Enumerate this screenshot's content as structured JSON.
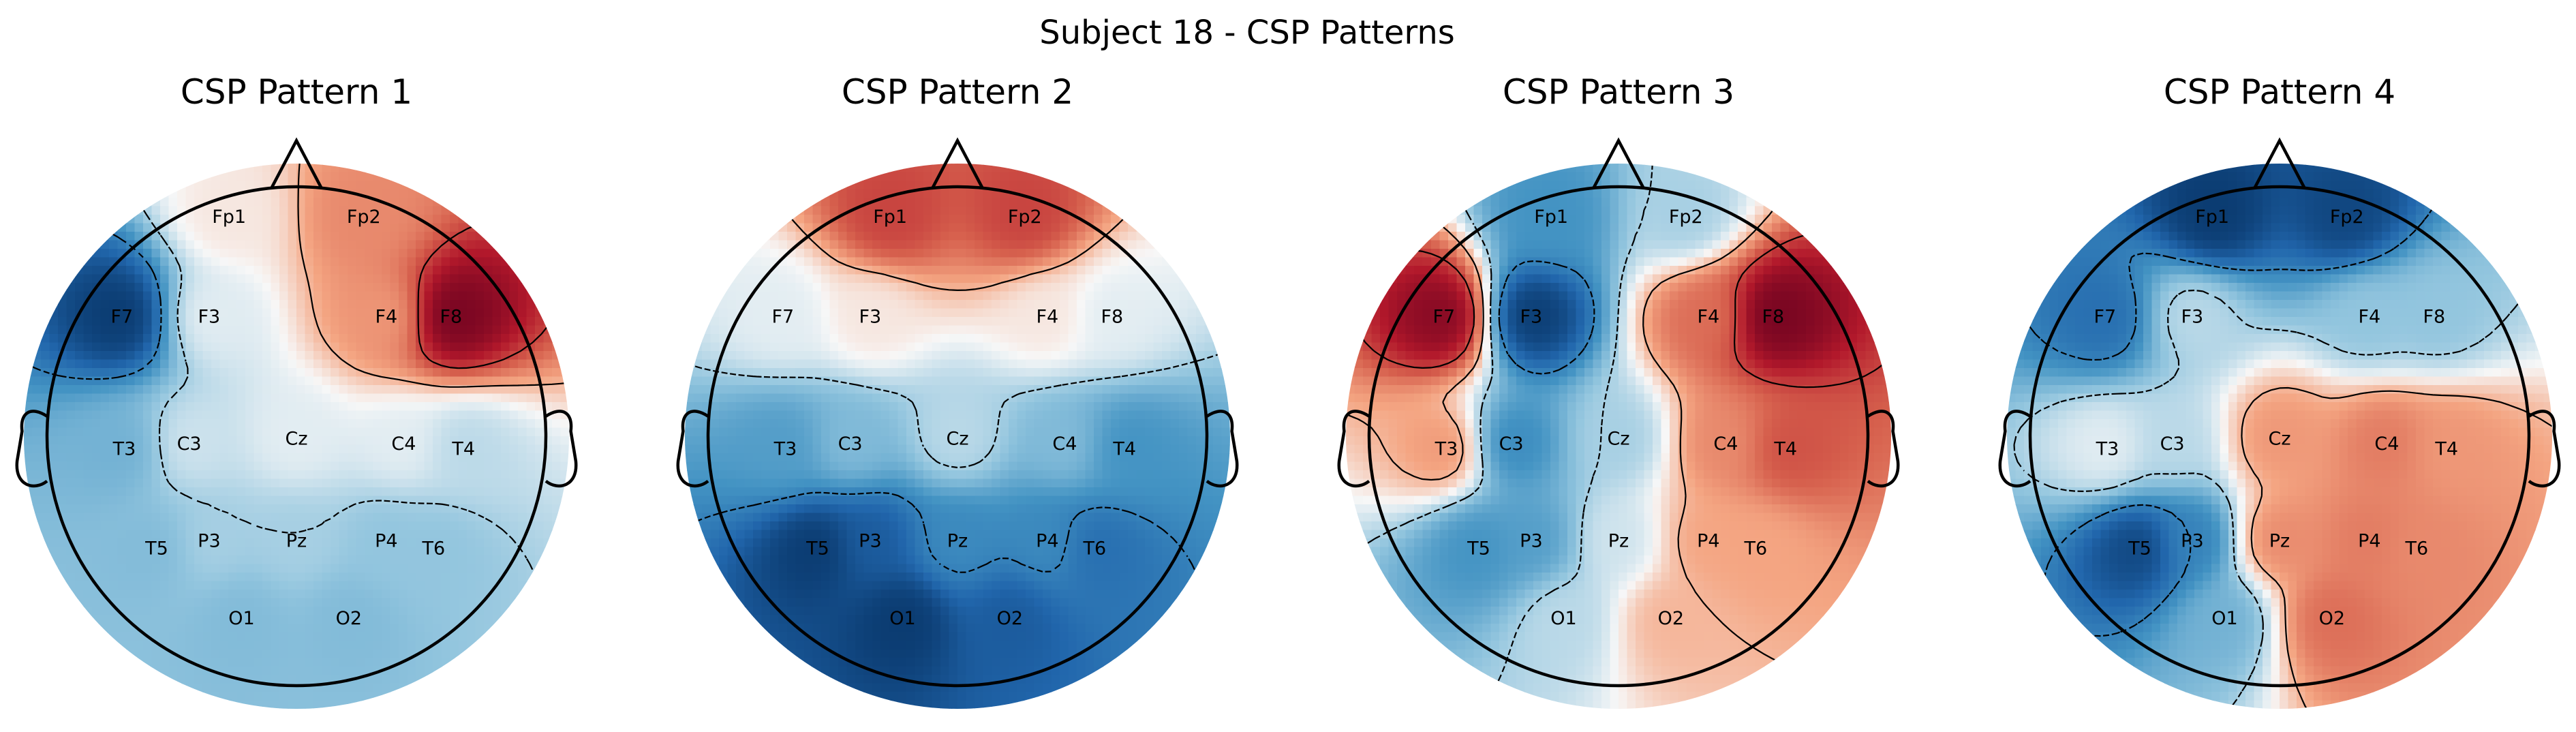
{
  "figure": {
    "suptitle": "Subject 18 - CSP Patterns"
  },
  "colors": {
    "diverging_map": "RdBu_r",
    "neg_strong": "#053061",
    "neg": "#4393c3",
    "neutral": "#f7f7f7",
    "pos": "#f4a582",
    "pos_strong": "#67001f",
    "outline": "#000000"
  },
  "chart_data": [
    {
      "type": "heatmap",
      "subtype": "scalp-topomap",
      "title": "CSP Pattern 1",
      "electrodes": [
        "Fp1",
        "Fp2",
        "F7",
        "F3",
        "F4",
        "F8",
        "T3",
        "C3",
        "Cz",
        "C4",
        "T4",
        "T5",
        "P3",
        "Pz",
        "P4",
        "T6",
        "O1",
        "O2"
      ],
      "values": [
        0.05,
        0.35,
        -0.95,
        -0.05,
        0.3,
        0.95,
        -0.35,
        -0.1,
        -0.05,
        -0.05,
        -0.15,
        -0.3,
        -0.2,
        -0.2,
        -0.25,
        -0.25,
        -0.3,
        -0.3
      ],
      "contours": true
    },
    {
      "type": "heatmap",
      "subtype": "scalp-topomap",
      "title": "CSP Pattern 2",
      "electrodes": [
        "Fp1",
        "Fp2",
        "F7",
        "F3",
        "F4",
        "F8",
        "T3",
        "C3",
        "Cz",
        "C4",
        "T4",
        "T5",
        "P3",
        "Pz",
        "P4",
        "T6",
        "O1",
        "O2"
      ],
      "values": [
        0.6,
        0.6,
        -0.05,
        0.05,
        0.05,
        -0.05,
        -0.45,
        -0.3,
        -0.15,
        -0.3,
        -0.5,
        -0.95,
        -0.8,
        -0.55,
        -0.55,
        -0.7,
        -0.95,
        -0.8
      ],
      "contours": true
    },
    {
      "type": "heatmap",
      "subtype": "scalp-topomap",
      "title": "CSP Pattern 3",
      "electrodes": [
        "Fp1",
        "Fp2",
        "F7",
        "F3",
        "F4",
        "F8",
        "T3",
        "C3",
        "Cz",
        "C4",
        "T4",
        "T5",
        "P3",
        "Pz",
        "P4",
        "T6",
        "O1",
        "O2"
      ],
      "values": [
        -0.5,
        -0.2,
        0.9,
        -0.95,
        0.45,
        0.95,
        0.3,
        -0.55,
        -0.2,
        0.35,
        0.55,
        -0.5,
        -0.45,
        -0.1,
        0.25,
        0.25,
        -0.15,
        0.2
      ],
      "contours": true
    },
    {
      "type": "heatmap",
      "subtype": "scalp-topomap",
      "title": "CSP Pattern 4",
      "electrodes": [
        "Fp1",
        "Fp2",
        "F7",
        "F3",
        "F4",
        "F8",
        "T3",
        "C3",
        "Cz",
        "C4",
        "T4",
        "T5",
        "P3",
        "Pz",
        "P4",
        "T6",
        "O1",
        "O2"
      ],
      "values": [
        -0.95,
        -0.9,
        -0.7,
        -0.15,
        -0.25,
        -0.25,
        -0.05,
        -0.15,
        0.3,
        0.4,
        0.3,
        -0.9,
        -0.6,
        0.35,
        0.4,
        0.35,
        -0.35,
        0.45
      ],
      "contours": true
    }
  ]
}
